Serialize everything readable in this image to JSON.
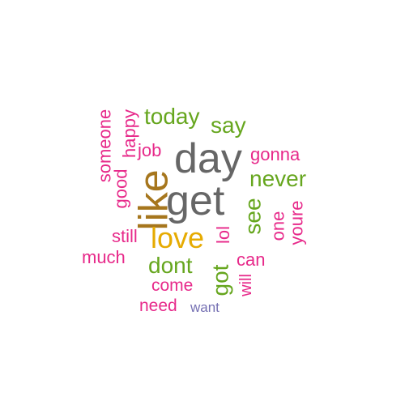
{
  "words": [
    {
      "text": "day",
      "color": "#666666"
    },
    {
      "text": "get",
      "color": "#666666"
    },
    {
      "text": "like",
      "color": "#a6761d"
    },
    {
      "text": "love",
      "color": "#e6ab02"
    },
    {
      "text": "today",
      "color": "#66a61e"
    },
    {
      "text": "say",
      "color": "#66a61e"
    },
    {
      "text": "never",
      "color": "#66a61e"
    },
    {
      "text": "see",
      "color": "#66a61e"
    },
    {
      "text": "dont",
      "color": "#66a61e"
    },
    {
      "text": "got",
      "color": "#66a61e"
    },
    {
      "text": "good",
      "color": "#e7298a"
    },
    {
      "text": "happy",
      "color": "#e7298a"
    },
    {
      "text": "someone",
      "color": "#e7298a"
    },
    {
      "text": "job",
      "color": "#e7298a"
    },
    {
      "text": "gonna",
      "color": "#e7298a"
    },
    {
      "text": "one",
      "color": "#e7298a"
    },
    {
      "text": "youre",
      "color": "#e7298a"
    },
    {
      "text": "still",
      "color": "#e7298a"
    },
    {
      "text": "lol",
      "color": "#e7298a"
    },
    {
      "text": "can",
      "color": "#e7298a"
    },
    {
      "text": "much",
      "color": "#e7298a"
    },
    {
      "text": "come",
      "color": "#e7298a"
    },
    {
      "text": "will",
      "color": "#e7298a"
    },
    {
      "text": "need",
      "color": "#e7298a"
    },
    {
      "text": "want",
      "color": "#7570b3"
    }
  ]
}
